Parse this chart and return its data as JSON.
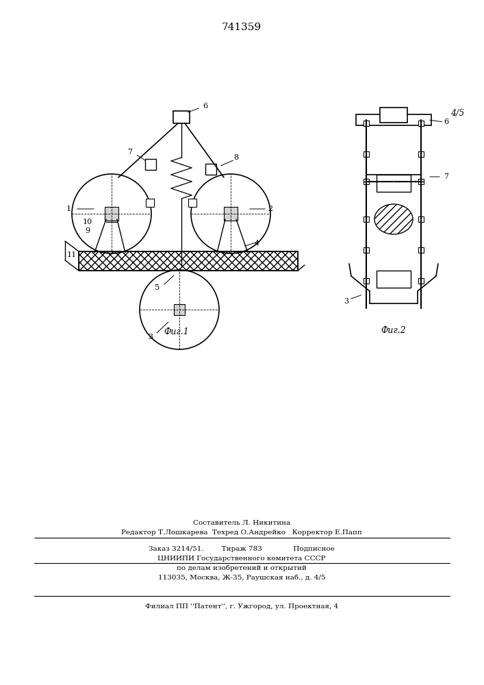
{
  "patent_number": "741359",
  "fig1_caption": "Фиг.1",
  "fig2_caption": "Фиг.2",
  "fig2_label": "4/5",
  "footer_line1": "Составитель Л. Никитина",
  "footer_line2": "Редактор Т.Лошкарева  Техред О.Андрейко   Корректор Е.Папп",
  "footer_line3": "Заказ 3214/51.        Тираж 783              Подписное",
  "footer_line4": "ЦНИИПИ Государственного комитета СССР",
  "footer_line5": "по делам изобретений и открытий",
  "footer_line6": "113035, Москва, Ж-35, Раушская наб., д. 4/5",
  "footer_line7": "Филиал ПП ''Патент'', г. Ужгород, ул. Проектная, 4",
  "bg_color": "#ffffff",
  "line_color": "#000000"
}
